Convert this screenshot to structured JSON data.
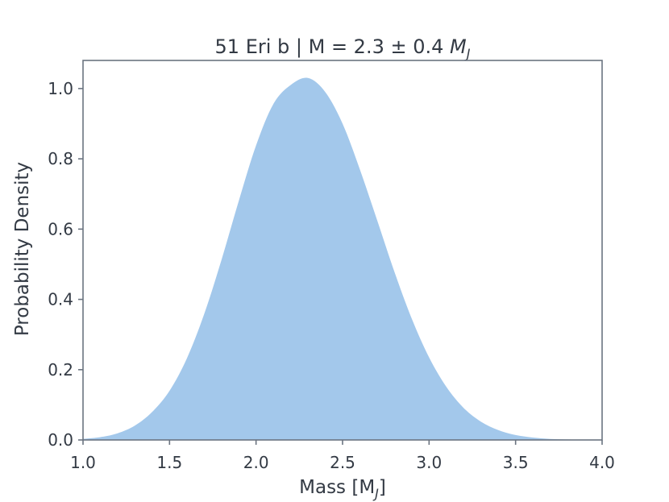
{
  "chart_data": {
    "type": "area",
    "title": "51 Eri b | M = 2.3 ± 0.4 ",
    "title_unit": "M",
    "title_unit_sub": "J",
    "xlabel": "Mass [M",
    "xlabel_sub": "J",
    "xlabel_end": "]",
    "ylabel": "Probability Density",
    "xlim": [
      1.0,
      4.0
    ],
    "ylim": [
      0.0,
      1.08
    ],
    "x_ticks": [
      "1.0",
      "1.5",
      "2.0",
      "2.5",
      "3.0",
      "3.5",
      "4.0"
    ],
    "y_ticks": [
      "0.0",
      "0.2",
      "0.4",
      "0.6",
      "0.8",
      "1.0"
    ],
    "grid": false,
    "fill_color": "#a3c8eb",
    "x": [
      1.0,
      1.1,
      1.2,
      1.3,
      1.4,
      1.5,
      1.6,
      1.7,
      1.8,
      1.9,
      2.0,
      2.1,
      2.2,
      2.3,
      2.4,
      2.5,
      2.6,
      2.7,
      2.8,
      2.9,
      3.0,
      3.1,
      3.2,
      3.3,
      3.4,
      3.5,
      3.6,
      3.7,
      3.8,
      3.9,
      4.0
    ],
    "y": [
      0.003,
      0.008,
      0.019,
      0.041,
      0.08,
      0.14,
      0.232,
      0.358,
      0.512,
      0.68,
      0.838,
      0.956,
      1.01,
      1.03,
      0.99,
      0.9,
      0.77,
      0.625,
      0.478,
      0.345,
      0.235,
      0.151,
      0.091,
      0.052,
      0.028,
      0.014,
      0.007,
      0.003,
      0.0015,
      0.0007,
      0.0003
    ]
  }
}
